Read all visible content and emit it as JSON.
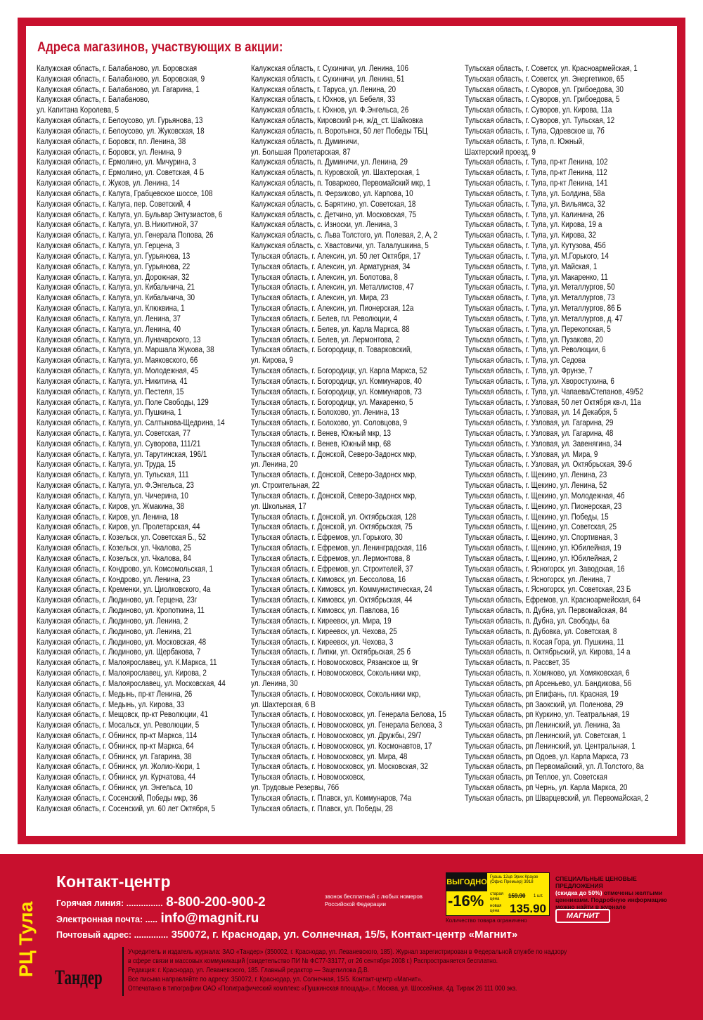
{
  "title": "Адреса магазинов, участвующих в акции:",
  "columns": [
    [
      "Калужская область, г. Балабаново, ул. Боровская",
      "Калужская область, г. Балабаново, ул. Боровская, 9",
      "Калужская область, г. Балабаново, ул. Гагарина, 1",
      "Калужская область, г. Балабаново,",
      "ул. Капитана Королева, 5",
      "Калужская область, г. Белоусово, ул. Гурьянова, 13",
      "Калужская область, г. Белоусово, ул. Жуковская, 18",
      "Калужская область, г. Боровск, пл. Ленина, 38",
      "Калужская область, г. Боровск, ул. Ленина, 9",
      "Калужская область, г. Ермолино, ул. Мичурина, 3",
      "Калужская область, г. Ермолино, ул. Советская, 4 Б",
      "Калужская область, г. Жуков, ул. Ленина, 14",
      "Калужская область, г. Калуга, Грабцевское шоссе, 108",
      "Калужская область, г. Калуга, пер. Советский, 4",
      "Калужская область, г. Калуга, ул. Бульвар Энтузиастов, 6",
      "Калужская область, г. Калуга, ул. В.Никитиной, 37",
      "Калужская область, г. Калуга, ул. Генерала Попова, 26",
      "Калужская область, г. Калуга, ул. Герцена, 3",
      "Калужская область, г. Калуга, ул. Гурьянова, 13",
      "Калужская область, г. Калуга, ул. Гурьянова, 22",
      "Калужская область, г. Калуга, ул. Дорожная, 32",
      "Калужская область, г. Калуга, ул. Кибальчича, 21",
      "Калужская область, г. Калуга, ул. Кибальчича, 30",
      "Калужская область, г. Калуга, ул. Клюквина, 1",
      "Калужская область, г. Калуга, ул. Ленина, 37",
      "Калужская область, г. Калуга, ул. Ленина, 40",
      "Калужская область, г. Калуга, ул. Луначарского, 13",
      "Калужская область, г. Калуга, ул. Маршала Жукова, 38",
      "Калужская область, г. Калуга, ул. Маяковского, 66",
      "Калужская область, г. Калуга, ул. Молодежная, 45",
      "Калужская область, г. Калуга, ул. Никитина, 41",
      "Калужская область, г. Калуга, ул. Пестеля, 15",
      "Калужская область, г. Калуга, ул. Поле Свободы, 129",
      "Калужская область, г. Калуга, ул. Пушкина, 1",
      "Калужская область, г. Калуга, ул. Салтыкова-Щедрина, 14",
      "Калужская область, г. Калуга, ул. Советская, 77",
      "Калужская область, г. Калуга, ул. Суворова, 111/21",
      "Калужская область, г. Калуга, ул. Тарутинская, 196/1",
      "Калужская область, г. Калуга, ул. Труда, 15",
      "Калужская область, г. Калуга, ул. Тульская, 111",
      "Калужская область, г. Калуга, ул. Ф.Энгельса, 23",
      "Калужская область, г. Калуга, ул. Чичерина, 10",
      "Калужская область, г. Киров, ул. Жмакина, 38",
      "Калужская область, г. Киров, ул. Ленина, 18",
      "Калужская область, г. Киров, ул. Пролетарская, 44",
      "Калужская область, г. Козельск, ул. Советская Б., 52",
      "Калужская область, г. Козельск, ул. Чкалова, 25",
      "Калужская область, г. Козельск, ул. Чкалова, 84",
      "Калужская область, г. Кондрово, ул. Комсомольская, 1",
      "Калужская область, г. Кондрово, ул. Ленина, 23",
      "Калужская область, г. Кременки, ул. Циолковского, 4а",
      "Калужская область, г. Людиново, ул. Герцена, 23г",
      "Калужская область, г. Людиново, ул. Кропоткина, 11",
      "Калужская область, г. Людиново, ул. Ленина, 2",
      "Калужская область, г. Людиново, ул. Ленина, 21",
      "Калужская область, г. Людиново, ул. Московская, 48",
      "Калужская область, г. Людиново, ул. Щербакова, 7",
      "Калужская область, г. Малоярославец, ул. К.Маркса, 11",
      "Калужская область, г. Малоярославец, ул. Кирова, 2",
      "Калужская область, г. Малоярославец, ул. Московская, 44",
      "Калужская область, г. Медынь, пр-кт Ленина, 26",
      "Калужская область, г. Медынь, ул. Кирова, 33",
      "Калужская область, г. Мещовск, пр-кт Революции, 41",
      "Калужская область, г. Мосальск, ул. Революции, 5",
      "Калужская область, г. Обнинск, пр-кт Маркса, 114",
      "Калужская область, г. Обнинск, пр-кт Маркса, 64",
      "Калужская область, г. Обнинск, ул. Гагарина, 38",
      "Калужская область, г. Обнинск, ул. Жолио-Кюри, 1",
      "Калужская область, г. Обнинск, ул. Курчатова, 44",
      "Калужская область, г. Обнинск, ул. Энгельса, 10",
      "Калужская область, г. Сосенский, Победы мкр, 36",
      "Калужская область, г. Сосенский, ул. 60 лет Октября, 5"
    ],
    [
      "Калужская область, г. Сухиничи, ул. Ленина, 106",
      "Калужская область, г. Сухиничи, ул. Ленина, 51",
      "Калужская область, г. Таруса, ул. Ленина, 20",
      "Калужская область, г. Юхнов, ул. Бебеля, 33",
      "Калужская область, г. Юхнов, ул. Ф.Энгельса, 26",
      "Калужская область, Кировский р-н, ж/д_ст. Шайковка",
      "Калужская область, п. Воротынск, 50 лет Победы ТБЦ",
      "Калужская область, п. Думиничи,",
      "ул. Большая Пролетарская, 87",
      "Калужская область, п. Думиничи, ул. Ленина, 29",
      "Калужская область, п. Куровской, ул. Шахтерская, 1",
      "Калужская область, п. Товарково, Первомайский мкр, 1",
      "Калужская область, п. Ферзиково, ул. Карпова, 10",
      "Калужская область, с. Барятино, ул. Советская, 18",
      "Калужская область, с. Детчино, ул. Московская, 75",
      "Калужская область, с. Износки, ул. Ленина, 3",
      "Калужская область, с. Льва Толстого, ул. Полевая, 2, А, 2",
      "Калужская область, с. Хвастовичи, ул. Талалушкина, 5",
      "Тульская область, г. Алексин, ул. 50 лет Октября, 17",
      "Тульская область, г. Алексин, ул. Арматурная, 34",
      "Тульская область, г. Алексин, ул. Болотова, 8",
      "Тульская область, г. Алексин, ул. Металлистов, 47",
      "Тульская область, г. Алексин, ул. Мира, 23",
      "Тульская область, г. Алексин, ул. Пионерская, 12а",
      "Тульская область, г. Белев, пл. Революции, 4",
      "Тульская область, г. Белев, ул. Карла Маркса, 88",
      "Тульская область, г. Белев, ул. Лермонтова, 2",
      "Тульская область, г. Богородицк, п. Товарковский,",
      "ул. Кирова, 9",
      "Тульская область, г. Богородицк, ул. Карла Маркса, 52",
      "Тульская область, г. Богородицк, ул. Коммунаров, 40",
      "Тульская область, г. Богородицк, ул. Коммунаров, 73",
      "Тульская область, г. Богородицк, ул. Макаренко, 5",
      "Тульская область, г. Болохово, ул. Ленина, 13",
      "Тульская область, г. Болохово, ул. Соловцова, 9",
      "Тульская область, г. Венев, Южный мкр, 13",
      "Тульская область, г. Венев, Южный мкр, 68",
      "Тульская область, г. Донской, Северо-Задонск мкр,",
      "ул. Ленина, 20",
      "Тульская область, г. Донской, Северо-Задонск мкр,",
      "ул. Строительная, 22",
      "Тульская область, г. Донской, Северо-Задонск мкр,",
      "ул. Школьная, 17",
      "Тульская область, г. Донской, ул. Октябрьская, 128",
      "Тульская область, г. Донской, ул. Октябрьская, 75",
      "Тульская область, г. Ефремов, ул. Горького, 30",
      "Тульская область, г. Ефремов, ул. Ленинградская, 116",
      "Тульская область, г. Ефремов, ул. Лермонтова, 8",
      "Тульская область, г. Ефремов, ул. Строителей, 37",
      "Тульская область, г. Кимовск, ул. Бессолова, 16",
      "Тульская область, г. Кимовск, ул. Коммунистическая, 24",
      "Тульская область, г. Кимовск, ул. Октябрьская, 44",
      "Тульская область, г. Кимовск, ул. Павлова, 16",
      "Тульская область, г. Киреевск, ул. Мира, 19",
      "Тульская область, г. Киреевск, ул. Чехова, 25",
      "Тульская область, г. Киреевск, ул. Чехова, 3",
      "Тульская область, г. Липки, ул. Октябрьская, 25 б",
      "Тульская область, г. Новомосковск, Рязанское ш, 9г",
      "Тульская область, г. Новомосковск, Сокольники мкр,",
      "ул. Ленина, 30",
      "Тульская область, г. Новомосковск, Сокольники мкр,",
      "ул. Шахтерская, 6 В",
      "Тульская область, г. Новомосковск, ул. Генерала Белова, 15",
      "Тульская область, г. Новомосковск, ул. Генерала Белова, 3",
      "Тульская область, г. Новомосковск, ул. Дружбы, 29/7",
      "Тульская область, г. Новомосковск, ул. Космонавтов, 17",
      "Тульская область, г. Новомосковск, ул. Мира, 48",
      "Тульская область, г. Новомосковск, ул. Московская, 32",
      "Тульская область, г. Новомосковск,",
      "ул. Трудовые Резервы, 76б",
      "Тульская область, г. Плавск, ул. Коммунаров, 74а",
      "Тульская область, г. Плавск, ул. Победы, 28"
    ],
    [
      "Тульская область, г. Советск, ул. Красноармейская, 1",
      "Тульская область, г. Советск, ул. Энергетиков, 65",
      "Тульская область, г. Суворов, ул. Грибоедова, 30",
      "Тульская область, г. Суворов, ул. Грибоедова, 5",
      "Тульская область, г. Суворов, ул. Кирова, 11а",
      "Тульская область, г. Суворов, ул. Тульская, 12",
      "Тульская область, г. Тула, Одоевское ш, 7б",
      "Тульская область, г. Тула, п. Южный,",
      "Шахтерский проезд, 9",
      "Тульская область, г. Тула, пр-кт Ленина, 102",
      "Тульская область, г. Тула, пр-кт Ленина, 112",
      "Тульская область, г. Тула, пр-кт Ленина, 141",
      "Тульская область, г. Тула, ул. Болдина, 58а",
      "Тульская область, г. Тула, ул. Вильямса, 32",
      "Тульская область, г. Тула, ул. Калинина, 26",
      "Тульская область, г. Тула, ул. Кирова, 19 а",
      "Тульская область, г. Тула, ул. Кирова, 32",
      "Тульская область, г. Тула, ул. Кутузова, 45б",
      "Тульская область, г. Тула, ул. М.Горького, 14",
      "Тульская область, г. Тула, ул. Майская, 1",
      "Тульская область, г. Тула, ул. Макаренко, 11",
      "Тульская область, г. Тула, ул. Металлургов, 50",
      "Тульская область, г. Тула, ул. Металлургов, 73",
      "Тульская область, г. Тула, ул. Металлургов, 86 Б",
      "Тульская область, г. Тула, ул. Металлургов, д. 47",
      "Тульская область, г. Тула, ул. Перекопская, 5",
      "Тульская область, г. Тула, ул. Пузакова, 20",
      "Тульская область, г. Тула, ул. Революции, 6",
      "Тульская область, г. Тула, ул. Седова",
      "Тульская область, г. Тула, ул. Фрунзе, 7",
      "Тульская область, г. Тула, ул. Хворостухина, 6",
      "Тульская область, г. Тула, ул. Чапаева/Степанов, 49/52",
      "Тульская область, г. Узловая, 50 лет Октября кв-л, 11а",
      "Тульская область, г. Узловая, ул. 14 Декабря, 5",
      "Тульская область, г. Узловая, ул. Гагарина, 29",
      "Тульская область, г. Узловая, ул. Гагарина, 48",
      "Тульская область, г. Узловая, ул. Завенягина, 34",
      "Тульская область, г. Узловая, ул. Мира, 9",
      "Тульская область, г. Узловая, ул. Октябрьская, 39-б",
      "Тульская область, г. Щекино, ул. Ленина, 23",
      "Тульская область, г. Щекино, ул. Ленина, 52",
      "Тульская область, г. Щекино, ул. Молодежная, 4б",
      "Тульская область, г. Щекино, ул. Пионерская, 23",
      "Тульская область, г. Щекино, ул. Победы, 15",
      "Тульская область, г. Щекино, ул. Советская, 25",
      "Тульская область, г. Щекино, ул. Спортивная, 3",
      "Тульская область, г. Щекино, ул. Юбилейная, 19",
      "Тульская область, г. Щекино, ул. Юбилейная, 2",
      "Тульская область, г. Ясногорск, ул. Заводская, 16",
      "Тульская область, г. Ясногорск, ул. Ленина, 7",
      "Тульская область, г. Ясногорск, ул. Советская, 23 Б",
      "Тульская область, Ефремов, ул. Красноармейская, 64",
      "Тульская область, п. Дубна, ул. Первомайская, 84",
      "Тульская область, п. Дубна, ул. Свободы, 6а",
      "Тульская область, п. Дубовка, ул. Советская, 8",
      "Тульская область, п. Косая Гора, ул. Пушкина, 11",
      "Тульская область, п. Октябрьский, ул. Кирова, 14 а",
      "Тульская область, п. Рассвет, 35",
      "Тульская область, п. Хомяково, ул. Хомяковская, 6",
      "Тульская область, рп Арсеньево, ул. Бандикова, 56",
      "Тульская область, рп Епифань, пл. Красная, 19",
      "Тульская область, рп Заокский, ул. Поленова, 29",
      "Тульская область, рп Куркино, ул. Театральная, 19",
      "Тульская область, рп Ленинский, ул. Ленина, 3а",
      "Тульская область, рп Ленинский, ул. Советская, 1",
      "Тульская область, рп Ленинский, ул. Центральная, 1",
      "Тульская область, рп Одоев, ул. Карла Маркса, 73",
      "Тульская область, рп Первомайский, ул. Л.Толстого, 8а",
      "Тульская область, рп Теплое, ул. Советская",
      "Тульская область, рп Чернь, ул. Карла Маркса, 20",
      "Тульская область, рп Шварцевский, ул. Первомайская, 2"
    ]
  ],
  "footer": {
    "contact_title": "Контакт-центр",
    "hotline_label": "Горячая линия: ...............",
    "hotline_value": "8-800-200-900-2",
    "hotline_note_1": "звонок бесплатный с любых номеров",
    "hotline_note_2": "Российской Федерации",
    "email_label": "Электронная почта: .....",
    "email_value": "info@magnit.ru",
    "postal_label": "Почтовый адрес: ..............",
    "postal_value": "350072, г. Краснодар, ул. Солнечная, 15/5, Контакт-центр «Магнит»",
    "region": "РЦ Тула",
    "tander_logo": "Тандер",
    "imprint": [
      "Учредитель и издатель журнала: ЗАО «Тандер» (350002, г. Краснодар, ул. Леваневского, 185). Журнал зарегистрирован в Федеральной службе по надзору",
      "в сфере связи и массовых коммуникаций (свидетельство ПИ № ФС77-33177, от 26 сентября 2008 г.) Распространяется бесплатно.",
      "Редакция: г. Краснодар, ул. Леваневского, 185. Главный редактор — Зацепилова Д.В.",
      "Все письма направляйте по адресу: 350072, г. Краснодар, ул. Солнечная, 15/5. Контакт-центр «Магнит».",
      "Отпечатано в типографии ОАО «Полиграфический комплекс «Пушкинская площадь», г. Москва, ул. Шоссейная, 4д. Тираж 26 111 000 экз."
    ],
    "price_tag": {
      "badge": "ВЫГОДНО",
      "discount": "-16%",
      "product": "Гуашь 12цв Эрих Краузе (Офис Премьер) 3918",
      "old_label": "старая цена",
      "old_price": "159.90",
      "quantity": "1 шт.",
      "new_label": "новая цена",
      "new_price": "135.90",
      "accent_color": "#ffe800"
    },
    "limited_note": "Количество товара ограничено",
    "special_head": "СПЕЦИАЛЬНЫЕ ЦЕНОВЫЕ ПРЕДЛОЖЕНИЯ",
    "special_discount": "(скидка до 50%)",
    "special_text": "отмечены желтыми ценниками. Подробную информацию можно найти в журнале",
    "magnit_logo": "МАГНИТ"
  },
  "colors": {
    "brand_red": "#c8102e",
    "title_red": "#c0102a",
    "region_yellow": "#ffe800"
  }
}
